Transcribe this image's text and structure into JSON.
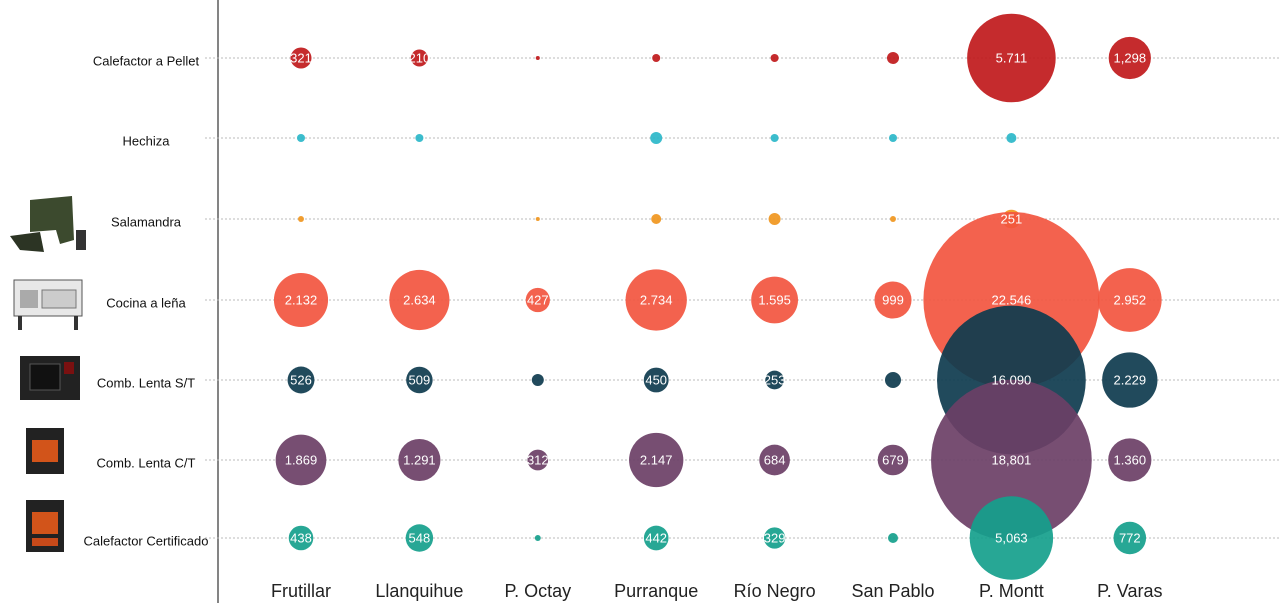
{
  "chart_data": {
    "type": "bubble",
    "categories": [
      "Frutillar",
      "Llanquihue",
      "P. Octay",
      "Purranque",
      "Río Negro",
      "San Pablo",
      "P. Montt",
      "P. Varas"
    ],
    "series": [
      {
        "name": "Calefactor a Pellet",
        "color": "#c0191b",
        "values": [
          321,
          210,
          12,
          47,
          47,
          105,
          5711,
          1298
        ],
        "value_labels": [
          "321",
          "210",
          null,
          null,
          null,
          null,
          "5.711",
          "1,298"
        ]
      },
      {
        "name": "Hechiza",
        "color": "#2bb7c9",
        "values": [
          47,
          47,
          null,
          105,
          47,
          47,
          73,
          null
        ],
        "value_labels": [
          null,
          null,
          null,
          null,
          null,
          null,
          null,
          null
        ]
      },
      {
        "name": "Salamandra",
        "color": "#f0961e",
        "values": [
          26,
          null,
          12,
          73,
          105,
          26,
          251,
          null
        ],
        "value_labels": [
          null,
          null,
          null,
          null,
          null,
          null,
          "251",
          null
        ]
      },
      {
        "name": "Cocina a leña",
        "color": "#f2553f",
        "values": [
          2132,
          2634,
          427,
          2734,
          1595,
          999,
          22546,
          2952
        ],
        "value_labels": [
          "2.132",
          "2.634",
          "427",
          "2.734",
          "1.595",
          "999",
          "22.546",
          "2.952"
        ]
      },
      {
        "name": "Comb. Lenta S/T",
        "color": "#0e3b4e",
        "values": [
          526,
          509,
          105,
          450,
          253,
          186,
          16090,
          2229
        ],
        "value_labels": [
          "526",
          "509",
          null,
          "450",
          "253",
          null,
          "16.090",
          "2.229"
        ]
      },
      {
        "name": "Comb. Lenta C/T",
        "color": "#6b3f66",
        "values": [
          1869,
          1291,
          312,
          2147,
          684,
          679,
          18801,
          1360
        ],
        "value_labels": [
          "1.869",
          "1.291",
          "312",
          "2.147",
          "684",
          "679",
          "18,801",
          "1.360"
        ]
      },
      {
        "name": "Calefactor Certificado",
        "color": "#15a08c",
        "values": [
          438,
          548,
          26,
          442,
          329,
          73,
          5063,
          772
        ],
        "value_labels": [
          "438",
          "548",
          null,
          "442",
          "329",
          null,
          "5,063",
          "772"
        ]
      }
    ]
  }
}
